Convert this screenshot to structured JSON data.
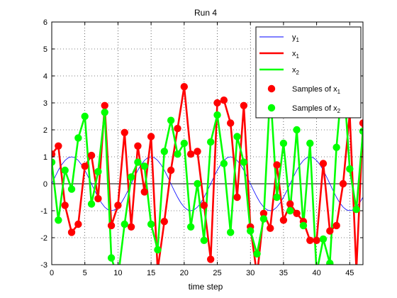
{
  "chart_data": {
    "type": "line",
    "title": "Run 4",
    "xlabel": "time step",
    "ylabel": "",
    "xlim": [
      0,
      47
    ],
    "ylim": [
      -3,
      6
    ],
    "xticks": [
      0,
      5,
      10,
      15,
      20,
      25,
      30,
      35,
      40,
      45
    ],
    "yticks": [
      -3,
      -2,
      -1,
      0,
      1,
      2,
      3,
      4,
      5,
      6
    ],
    "xtick_labels": [
      "0",
      "5",
      "10",
      "15",
      "20",
      "25",
      "30",
      "35",
      "40",
      "45"
    ],
    "ytick_labels": [
      "-3",
      "-2",
      "-1",
      "0",
      "1",
      "2",
      "3",
      "4",
      "5",
      "6"
    ],
    "grid": true,
    "legend_position": "top-right",
    "colors": {
      "y1": "#0000ff",
      "x1": "#ff0000",
      "x2": "#00ff00",
      "zero": "#000000"
    },
    "series": [
      {
        "key": "y1",
        "name": "y",
        "sub": "1",
        "x": [
          0,
          0.5,
          1,
          1.5,
          2,
          2.5,
          3,
          3.5,
          4,
          4.5,
          5,
          5.5,
          6,
          6.5,
          7,
          7.5,
          8,
          8.5,
          9,
          9.5,
          10,
          10.5,
          11,
          11.5,
          12,
          12.5,
          13,
          13.5,
          14,
          14.5,
          15,
          15.5,
          16,
          16.5,
          17,
          17.5,
          18,
          18.5,
          19,
          19.5,
          20,
          20.5,
          21,
          21.5,
          22,
          22.5,
          23,
          23.5,
          24,
          24.5,
          25,
          25.5,
          26,
          26.5,
          27,
          27.5,
          28,
          28.5,
          29,
          29.5,
          30,
          30.5,
          31,
          31.5,
          32,
          32.5,
          33,
          33.5,
          34,
          34.5,
          35,
          35.5,
          36,
          36.5,
          37,
          37.5,
          38,
          38.5,
          39,
          39.5,
          40,
          40.5,
          41,
          41.5,
          42,
          42.5,
          43,
          43.5,
          44,
          44.5,
          45,
          45.5,
          46,
          46.5,
          47
        ],
        "y": [
          0,
          0.259,
          0.5,
          0.707,
          0.866,
          0.966,
          1,
          0.966,
          0.866,
          0.707,
          0.5,
          0.259,
          0,
          -0.259,
          -0.5,
          -0.707,
          -0.866,
          -0.966,
          -1,
          -0.966,
          -0.866,
          -0.707,
          -0.5,
          -0.259,
          0,
          0.259,
          0.5,
          0.707,
          0.866,
          0.966,
          1,
          0.966,
          0.866,
          0.707,
          0.5,
          0.259,
          0,
          -0.259,
          -0.5,
          -0.707,
          -0.866,
          -0.966,
          -1,
          -0.966,
          -0.866,
          -0.707,
          -0.5,
          -0.259,
          0,
          0.259,
          0.5,
          0.707,
          0.866,
          0.966,
          1,
          0.966,
          0.866,
          0.707,
          0.5,
          0.259,
          0,
          -0.259,
          -0.5,
          -0.707,
          -0.866,
          -0.966,
          -1,
          -0.966,
          -0.866,
          -0.707,
          -0.5,
          -0.259,
          0,
          0.259,
          0.5,
          0.707,
          0.866,
          0.966,
          1,
          0.966,
          0.866,
          0.707,
          0.5,
          0.259,
          0,
          -0.259,
          -0.5,
          -0.707,
          -0.866,
          -0.966,
          -1,
          -0.966,
          -0.866,
          -0.707,
          -0.5
        ]
      },
      {
        "key": "x1",
        "name": "x",
        "sub": "1",
        "x": [
          0,
          1,
          2,
          3,
          4,
          5,
          6,
          7,
          8,
          9,
          10,
          11,
          12,
          13,
          14,
          15,
          16,
          17,
          18,
          19,
          20,
          21,
          22,
          23,
          24,
          25,
          26,
          27,
          28,
          29,
          30,
          31,
          32,
          33,
          34,
          35,
          36,
          37,
          38,
          39,
          40,
          41,
          42,
          43,
          44,
          45,
          46,
          47
        ],
        "y": [
          1.1,
          1.4,
          -0.8,
          -1.8,
          -1.5,
          0.65,
          1.05,
          -0.55,
          2.9,
          -1.55,
          -0.8,
          1.9,
          -1.6,
          1.4,
          -0.3,
          1.75,
          -3.2,
          -1.4,
          0.5,
          2.05,
          3.6,
          1.1,
          1.2,
          -0.8,
          -2.8,
          3.0,
          3.1,
          2.25,
          -0.5,
          2.9,
          -1.6,
          -3.4,
          -1.1,
          -1.65,
          0.7,
          -1.35,
          -0.75,
          -1.1,
          -1.4,
          -2.1,
          -2.1,
          0.75,
          -1.75,
          -1.55,
          0.0,
          2.6,
          -3.2,
          2.25
        ]
      },
      {
        "key": "x2",
        "name": "x",
        "sub": "2",
        "x": [
          0,
          1,
          2,
          3,
          4,
          5,
          6,
          7,
          8,
          9,
          10,
          11,
          12,
          13,
          14,
          15,
          16,
          17,
          18,
          19,
          20,
          21,
          22,
          23,
          24,
          25,
          26,
          27,
          28,
          29,
          30,
          31,
          32,
          33,
          34,
          35,
          36,
          37,
          38,
          39,
          40,
          41,
          42,
          43,
          44,
          45,
          46,
          47
        ],
        "y": [
          0.8,
          -1.35,
          0.5,
          -0.2,
          1.7,
          2.5,
          -0.75,
          0.45,
          2.65,
          -2.75,
          -3.5,
          -1.5,
          0.25,
          0.8,
          0.65,
          -1.5,
          -2.45,
          1.2,
          2.35,
          1.1,
          1.5,
          -1.6,
          0.0,
          -2.1,
          1.55,
          2.55,
          0.75,
          -1.8,
          1.75,
          0.8,
          -1.75,
          -2.6,
          -1.3,
          3.5,
          -0.5,
          1.5,
          -1.0,
          2.0,
          -1.55,
          1.5,
          -3.3,
          -2.05,
          -2.95,
          1.35,
          4.15,
          0.55,
          -0.95,
          1.95
        ]
      }
    ],
    "legend": [
      {
        "key": "y1",
        "kind": "line",
        "text": "y",
        "sub": "1"
      },
      {
        "key": "x1",
        "kind": "line",
        "text": "x",
        "sub": "1"
      },
      {
        "key": "x2",
        "kind": "line",
        "text": "x",
        "sub": "2"
      },
      {
        "key": "x1",
        "kind": "marker",
        "text": "Samples of x",
        "sub": "1"
      },
      {
        "key": "x2",
        "kind": "marker",
        "text": "Samples of x",
        "sub": "2"
      }
    ]
  }
}
